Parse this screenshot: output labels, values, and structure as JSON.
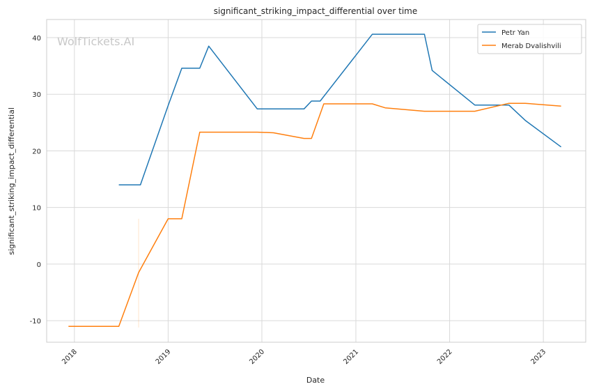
{
  "chart_data": {
    "type": "line",
    "title": "significant_striking_impact_differential over time",
    "xlabel": "Date",
    "ylabel": "significant_striking_impact_differential",
    "xlim": [
      "2017-09-15",
      "2023-06-15"
    ],
    "ylim": [
      -13.8,
      43.2
    ],
    "x_ticks": [
      "2018",
      "2019",
      "2020",
      "2021",
      "2022",
      "2023"
    ],
    "y_ticks": [
      -10,
      0,
      10,
      20,
      30,
      40
    ],
    "grid": true,
    "legend_position": "top-right",
    "watermark": "WolfTickets.AI",
    "series": [
      {
        "name": "Petr Yan",
        "color": "#1f77b4",
        "x": [
          "2018-06-23",
          "2018-09-15",
          "2019-01-01",
          "2019-02-23",
          "2019-05-04",
          "2019-06-08",
          "2019-12-14",
          "2020-06-13",
          "2020-07-12",
          "2020-08-15",
          "2021-03-06",
          "2021-09-25",
          "2021-10-25",
          "2022-04-09",
          "2022-08-20",
          "2022-10-22",
          "2023-03-11"
        ],
        "values": [
          14.0,
          14.0,
          28.0,
          34.6,
          34.6,
          38.5,
          27.4,
          27.4,
          28.8,
          28.8,
          40.6,
          40.6,
          34.2,
          28.1,
          28.1,
          25.4,
          20.7
        ]
      },
      {
        "name": "Merab Dvalishvili",
        "color": "#ff7f0e",
        "x": [
          "2017-12-09",
          "2018-06-23",
          "2018-09-08",
          "2019-01-01",
          "2019-02-23",
          "2019-05-04",
          "2019-12-14",
          "2020-02-15",
          "2020-06-13",
          "2020-07-12",
          "2020-08-29",
          "2021-03-06",
          "2021-04-25",
          "2021-09-25",
          "2022-04-09",
          "2022-08-20",
          "2022-10-22",
          "2023-03-11"
        ],
        "values": [
          -11.0,
          -11.0,
          -1.5,
          8.0,
          8.0,
          23.3,
          23.3,
          23.2,
          22.2,
          22.2,
          28.3,
          28.3,
          27.6,
          27.0,
          27.0,
          28.4,
          28.4,
          27.9
        ]
      }
    ]
  }
}
